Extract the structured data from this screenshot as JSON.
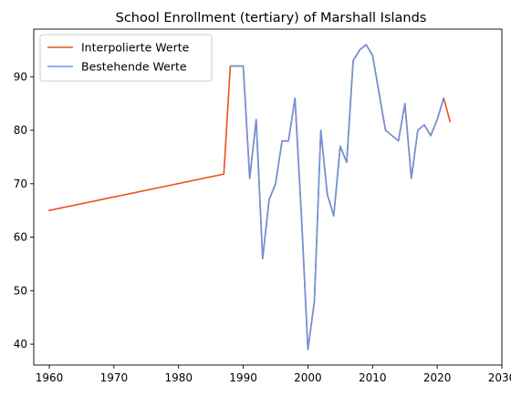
{
  "chart_data": {
    "type": "line",
    "title": "School Enrollment (tertiary) of Marshall Islands",
    "xlabel": "",
    "ylabel": "",
    "xlim": [
      1957.6,
      2030
    ],
    "ylim": [
      36.1,
      98.9
    ],
    "x_ticks": [
      1960,
      1970,
      1980,
      1990,
      2000,
      2010,
      2020,
      2030
    ],
    "y_ticks": [
      40,
      50,
      60,
      70,
      80,
      90
    ],
    "grid": false,
    "legend_position": "top-left",
    "series": [
      {
        "name": "Interpolierte Werte",
        "color": "#e8501a",
        "x": [
          1960,
          1987,
          1988,
          1989,
          1990,
          1991,
          1992,
          1993,
          1994,
          1995,
          1996,
          1997,
          1998,
          1999,
          2000,
          2001,
          2002,
          2003,
          2004,
          2005,
          2006,
          2007,
          2008,
          2009,
          2010,
          2011,
          2012,
          2013,
          2014,
          2015,
          2016,
          2017,
          2018,
          2019,
          2020,
          2021,
          2022
        ],
        "y": [
          65,
          71.8,
          92,
          92,
          92,
          71,
          82,
          56,
          67,
          70,
          78,
          78,
          86,
          64,
          39,
          48,
          80,
          68,
          64,
          77,
          74,
          93,
          95,
          96,
          94,
          87,
          80,
          79,
          78,
          85,
          71,
          80,
          81,
          79,
          82,
          86,
          81.6
        ]
      },
      {
        "name": "Bestehende Werte",
        "color": "#6d93de",
        "x": [
          1988,
          1989,
          1990,
          1991,
          1992,
          1993,
          1994,
          1995,
          1996,
          1997,
          1998,
          1999,
          2000,
          2001,
          2002,
          2003,
          2004,
          2005,
          2006,
          2007,
          2008,
          2009,
          2010,
          2011,
          2012,
          2013,
          2014,
          2015,
          2016,
          2017,
          2018,
          2019,
          2020,
          2021
        ],
        "y": [
          92,
          92,
          92,
          71,
          82,
          56,
          67,
          70,
          78,
          78,
          86,
          64,
          39,
          48,
          80,
          68,
          64,
          77,
          74,
          93,
          95,
          96,
          94,
          87,
          80,
          79,
          78,
          85,
          71,
          80,
          81,
          79,
          82,
          86
        ]
      }
    ]
  }
}
